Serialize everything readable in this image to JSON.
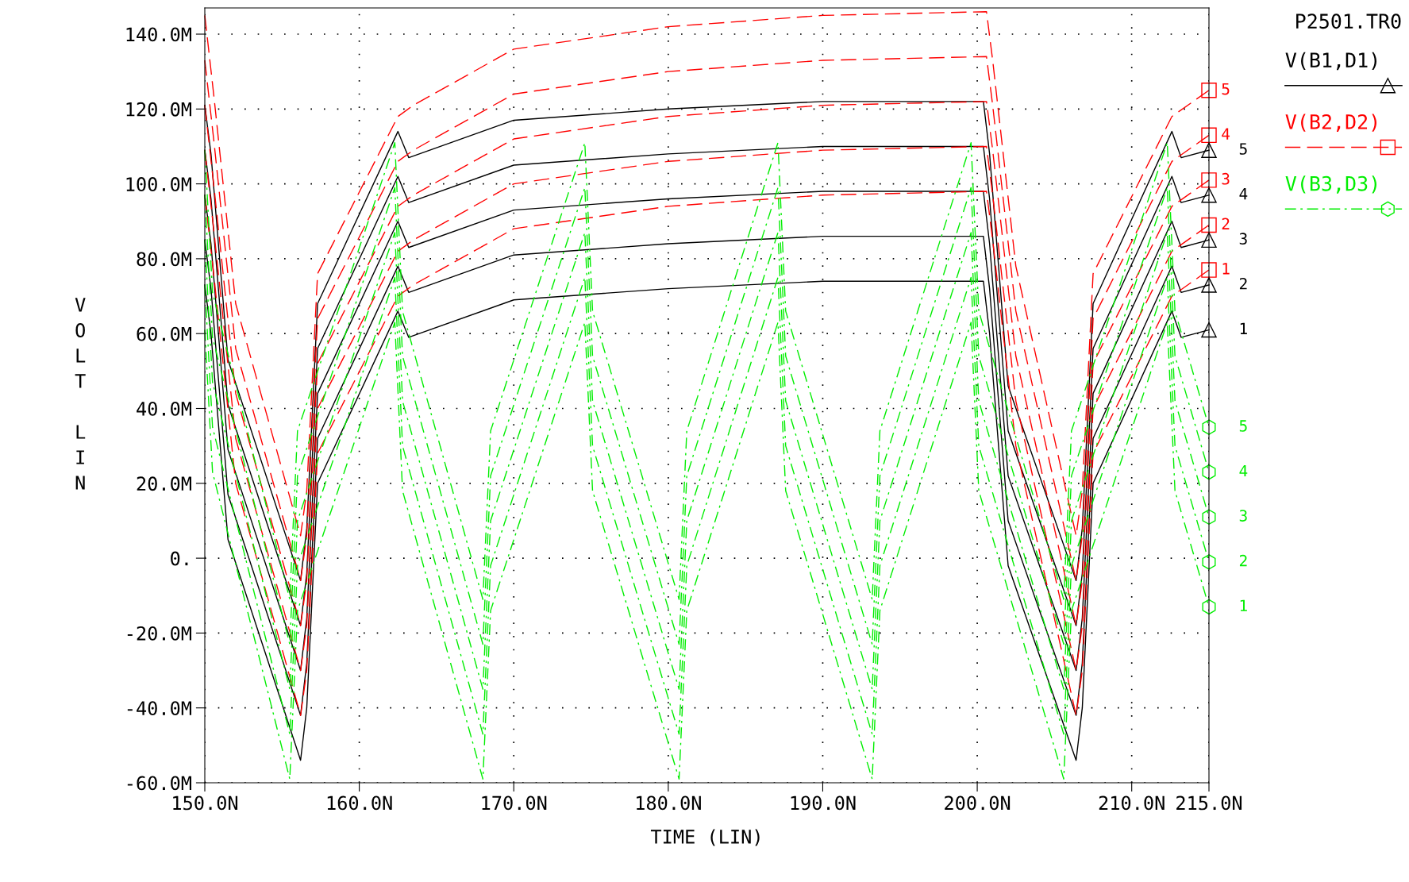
{
  "chart_data": {
    "type": "line",
    "title": "P2501.TR0",
    "xlabel": "TIME (LIN)",
    "ylabel": "VOLT LIN",
    "annotations": [
      "V(B1,D1)",
      "V(B2,D2)",
      "V(B3,D3)"
    ],
    "xlim": [
      150,
      215
    ],
    "ylim": [
      -60,
      147
    ],
    "xticks": [
      {
        "value": 150,
        "label": "150.0N"
      },
      {
        "value": 160,
        "label": "160.0N"
      },
      {
        "value": 170,
        "label": "170.0N"
      },
      {
        "value": 180,
        "label": "180.0N"
      },
      {
        "value": 190,
        "label": "190.0N"
      },
      {
        "value": 200,
        "label": "200.0N"
      },
      {
        "value": 210,
        "label": "210.0N"
      },
      {
        "value": 215,
        "label": "215.0N"
      }
    ],
    "yticks": [
      {
        "value": -60,
        "label": "-60.0M"
      },
      {
        "value": -40,
        "label": "-40.0M"
      },
      {
        "value": -20,
        "label": "-20.0M"
      },
      {
        "value": 0,
        "label": "0."
      },
      {
        "value": 20,
        "label": "20.0M"
      },
      {
        "value": 40,
        "label": "40.0M"
      },
      {
        "value": 60,
        "label": "60.0M"
      },
      {
        "value": 80,
        "label": "80.0M"
      },
      {
        "value": 100,
        "label": "100.0M"
      },
      {
        "value": 120,
        "label": "120.0M"
      },
      {
        "value": 140,
        "label": "140.0M"
      }
    ],
    "grid": true,
    "legend": "right",
    "series": [
      {
        "name": "1",
        "color": "#000000",
        "line_style": "solid",
        "x": [
          150,
          150.4,
          151.5,
          156.2,
          156.6,
          157.3,
          162.5,
          163.2,
          170,
          180,
          190,
          200.4,
          200.8,
          202,
          206.4,
          206.8,
          207.5,
          212.6,
          213.2,
          215
        ],
        "values": [
          73,
          60,
          5,
          -54,
          -40,
          20,
          66,
          59,
          69,
          72,
          74,
          74,
          60,
          -2,
          -54,
          -40,
          20,
          66,
          59,
          61
        ]
      },
      {
        "name": "2",
        "color": "#000000",
        "line_style": "solid",
        "x": [
          150,
          150.4,
          151.5,
          156.2,
          156.6,
          157.3,
          162.5,
          163.2,
          170,
          180,
          190,
          200.4,
          200.8,
          202,
          206.4,
          206.8,
          207.5,
          212.6,
          213.2,
          215
        ],
        "values": [
          85,
          72,
          17,
          -42,
          -28,
          32,
          78,
          71,
          81,
          84,
          86,
          86,
          72,
          10,
          -42,
          -28,
          32,
          78,
          71,
          73
        ]
      },
      {
        "name": "3",
        "color": "#000000",
        "line_style": "solid",
        "x": [
          150,
          150.4,
          151.5,
          156.2,
          156.6,
          157.3,
          162.5,
          163.2,
          170,
          180,
          190,
          200.4,
          200.8,
          202,
          206.4,
          206.8,
          207.5,
          212.6,
          213.2,
          215
        ],
        "values": [
          97,
          84,
          29,
          -30,
          -16,
          44,
          90,
          83,
          93,
          96,
          98,
          98,
          84,
          22,
          -30,
          -16,
          44,
          90,
          83,
          85
        ]
      },
      {
        "name": "4",
        "color": "#000000",
        "line_style": "solid",
        "x": [
          150,
          150.4,
          151.5,
          156.2,
          156.6,
          157.3,
          162.5,
          163.2,
          170,
          180,
          190,
          200.4,
          200.8,
          202,
          206.4,
          206.8,
          207.5,
          212.6,
          213.2,
          215
        ],
        "values": [
          109,
          96,
          41,
          -18,
          -4,
          56,
          102,
          95,
          105,
          108,
          110,
          110,
          96,
          34,
          -18,
          -4,
          56,
          102,
          95,
          97
        ]
      },
      {
        "name": "5",
        "color": "#000000",
        "line_style": "solid",
        "x": [
          150,
          150.4,
          151.5,
          156.2,
          156.6,
          157.3,
          162.5,
          163.2,
          170,
          180,
          190,
          200.4,
          200.8,
          202,
          206.4,
          206.8,
          207.5,
          212.6,
          213.2,
          215
        ],
        "values": [
          121,
          108,
          53,
          -6,
          8,
          68,
          114,
          107,
          117,
          120,
          122,
          122,
          108,
          46,
          -6,
          8,
          68,
          114,
          107,
          109
        ]
      },
      {
        "name": "1",
        "color": "#ff0000",
        "line_style": "dashed",
        "x": [
          150,
          150.6,
          152,
          156.2,
          156.6,
          157.3,
          162.5,
          163.5,
          170,
          180,
          190,
          200.6,
          201,
          202.5,
          206.4,
          206.8,
          207.5,
          212.6,
          215
        ],
        "values": [
          97,
          75,
          20,
          -42,
          -30,
          28,
          70,
          73,
          88,
          94,
          97,
          98,
          85,
          30,
          -42,
          -30,
          28,
          70,
          77
        ]
      },
      {
        "name": "2",
        "color": "#ff0000",
        "line_style": "dashed",
        "x": [
          150,
          150.6,
          152,
          156.2,
          156.6,
          157.3,
          162.5,
          163.5,
          170,
          180,
          190,
          200.6,
          201,
          202.5,
          206.4,
          206.8,
          207.5,
          212.6,
          215
        ],
        "values": [
          109,
          87,
          32,
          -30,
          -18,
          40,
          82,
          85,
          100,
          106,
          109,
          110,
          97,
          42,
          -30,
          -18,
          40,
          82,
          89
        ]
      },
      {
        "name": "3",
        "color": "#ff0000",
        "line_style": "dashed",
        "x": [
          150,
          150.6,
          152,
          156.2,
          156.6,
          157.3,
          162.5,
          163.5,
          170,
          180,
          190,
          200.6,
          201,
          202.5,
          206.4,
          206.8,
          207.5,
          212.6,
          215
        ],
        "values": [
          121,
          99,
          44,
          -18,
          -6,
          52,
          94,
          97,
          112,
          118,
          121,
          122,
          109,
          54,
          -18,
          -6,
          52,
          94,
          101
        ]
      },
      {
        "name": "4",
        "color": "#ff0000",
        "line_style": "dashed",
        "x": [
          150,
          150.6,
          152,
          156.2,
          156.6,
          157.3,
          162.5,
          163.5,
          170,
          180,
          190,
          200.6,
          201,
          202.5,
          206.4,
          206.8,
          207.5,
          212.6,
          215
        ],
        "values": [
          133,
          111,
          56,
          -6,
          6,
          64,
          106,
          109,
          124,
          130,
          133,
          134,
          121,
          66,
          -6,
          6,
          64,
          106,
          113
        ]
      },
      {
        "name": "5",
        "color": "#ff0000",
        "line_style": "dashed",
        "x": [
          150,
          150.6,
          152,
          156.2,
          156.6,
          157.3,
          162.5,
          163.5,
          170,
          180,
          190,
          200.6,
          201,
          202.5,
          206.4,
          206.8,
          207.5,
          212.6,
          215
        ],
        "values": [
          145,
          123,
          68,
          6,
          18,
          76,
          118,
          121,
          136,
          142,
          145,
          146,
          133,
          78,
          6,
          18,
          76,
          118,
          125
        ]
      },
      {
        "name": "1",
        "color": "#00ee00",
        "line_style": "dashdot",
        "x": [
          150,
          150.5,
          155.5,
          156,
          162.3,
          162.8,
          168,
          168.5,
          174.6,
          175.1,
          180.7,
          181.2,
          187.1,
          187.6,
          193.2,
          193.7,
          199.6,
          200.1,
          205.6,
          206.1,
          212.3,
          212.8,
          215
        ],
        "values": [
          61,
          23,
          -59,
          -14,
          63,
          18,
          -59,
          -14,
          63,
          18,
          -59,
          -14,
          63,
          18,
          -59,
          -14,
          63,
          18,
          -59,
          -14,
          63,
          18,
          -13
        ]
      },
      {
        "name": "2",
        "color": "#00ee00",
        "line_style": "dashdot",
        "x": [
          150,
          150.5,
          155.5,
          156,
          162.3,
          162.8,
          168,
          168.5,
          174.6,
          175.1,
          180.7,
          181.2,
          187.1,
          187.6,
          193.2,
          193.7,
          199.6,
          200.1,
          205.6,
          206.1,
          212.3,
          212.8,
          215
        ],
        "values": [
          73,
          35,
          -47,
          -2,
          75,
          30,
          -47,
          -2,
          75,
          30,
          -47,
          -2,
          75,
          30,
          -47,
          -2,
          75,
          30,
          -47,
          -2,
          75,
          30,
          -1
        ]
      },
      {
        "name": "3",
        "color": "#00ee00",
        "line_style": "dashdot",
        "x": [
          150,
          150.5,
          155.5,
          156,
          162.3,
          162.8,
          168,
          168.5,
          174.6,
          175.1,
          180.7,
          181.2,
          187.1,
          187.6,
          193.2,
          193.7,
          199.6,
          200.1,
          205.6,
          206.1,
          212.3,
          212.8,
          215
        ],
        "values": [
          85,
          47,
          -35,
          10,
          87,
          42,
          -35,
          10,
          87,
          42,
          -35,
          10,
          87,
          42,
          -35,
          10,
          87,
          42,
          -35,
          10,
          87,
          42,
          11
        ]
      },
      {
        "name": "4",
        "color": "#00ee00",
        "line_style": "dashdot",
        "x": [
          150,
          150.5,
          155.5,
          156,
          162.3,
          162.8,
          168,
          168.5,
          174.6,
          175.1,
          180.7,
          181.2,
          187.1,
          187.6,
          193.2,
          193.7,
          199.6,
          200.1,
          205.6,
          206.1,
          212.3,
          212.8,
          215
        ],
        "values": [
          97,
          59,
          -23,
          22,
          99,
          54,
          -23,
          22,
          99,
          54,
          -23,
          22,
          99,
          54,
          -23,
          22,
          99,
          54,
          -23,
          22,
          99,
          54,
          23
        ]
      },
      {
        "name": "5",
        "color": "#00ee00",
        "line_style": "dashdot",
        "x": [
          150,
          150.5,
          155.5,
          156,
          162.3,
          162.8,
          168,
          168.5,
          174.6,
          175.1,
          180.7,
          181.2,
          187.1,
          187.6,
          193.2,
          193.7,
          199.6,
          200.1,
          205.6,
          206.1,
          212.3,
          212.8,
          215
        ],
        "values": [
          109,
          71,
          -11,
          34,
          111,
          66,
          -11,
          34,
          111,
          66,
          -11,
          34,
          111,
          66,
          -11,
          34,
          111,
          66,
          -11,
          34,
          111,
          66,
          35
        ]
      }
    ]
  }
}
